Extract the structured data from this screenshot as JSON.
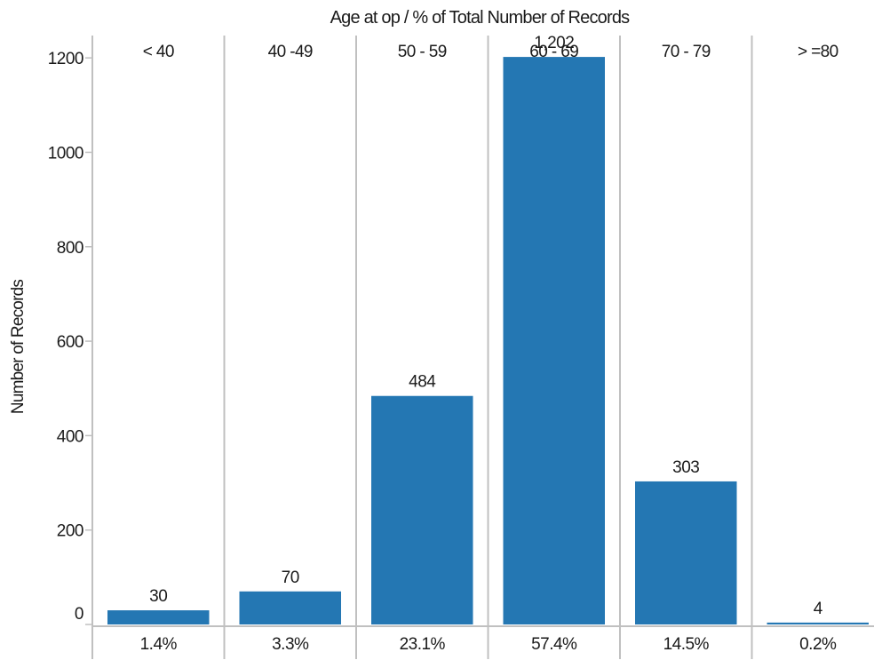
{
  "chart_data": {
    "type": "bar",
    "title": "Age at op  /  % of Total Number of Records",
    "ylabel": "Number of Records",
    "xlabel": "",
    "categories": [
      "< 40",
      "40 -49",
      "50 - 59",
      "60 - 69",
      "70 - 79",
      "> =80"
    ],
    "values": [
      30,
      70,
      484,
      1202,
      303,
      4
    ],
    "value_labels": [
      "30",
      "70",
      "484",
      "1,202",
      "303",
      "4"
    ],
    "percent_labels": [
      "1.4%",
      "3.3%",
      "23.1%",
      "57.4%",
      "14.5%",
      "0.2%"
    ],
    "ylim": [
      0,
      1300
    ],
    "yticks": [
      0,
      200,
      400,
      600,
      800,
      1000,
      1200
    ],
    "grid": false,
    "bar_color": "#2477b3",
    "divider_color": "#c0c0c0"
  }
}
